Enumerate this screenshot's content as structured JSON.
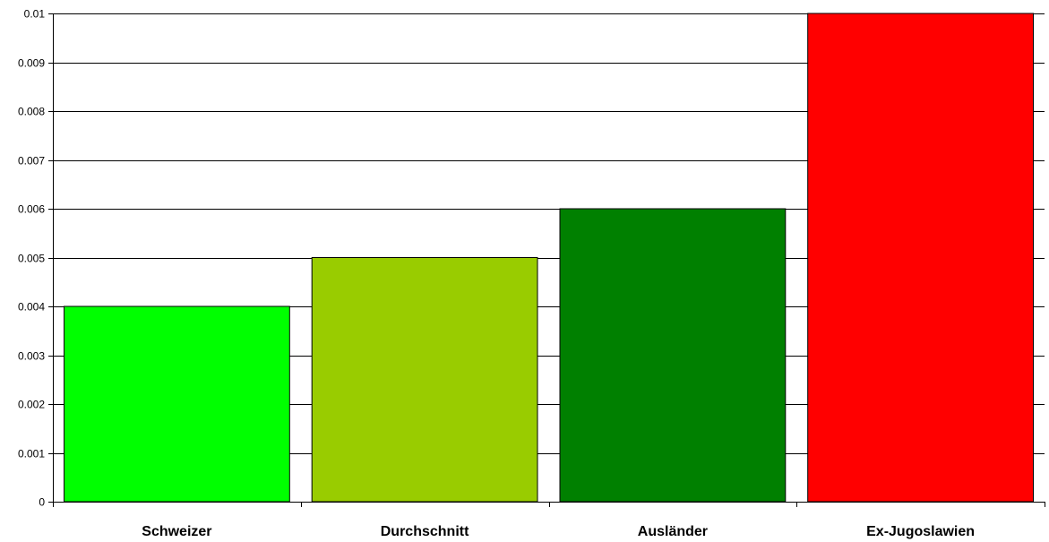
{
  "chart_data": {
    "type": "bar",
    "categories": [
      "Schweizer",
      "Durchschnitt",
      "Ausländer",
      "Ex-Jugoslawien"
    ],
    "values": [
      0.004,
      0.005,
      0.006,
      0.01
    ],
    "colors": [
      "#00ff00",
      "#99cc00",
      "#008000",
      "#ff0000"
    ],
    "title": "",
    "xlabel": "",
    "ylabel": "",
    "ylim": [
      0,
      0.01
    ],
    "yticks": [
      0,
      0.001,
      0.002,
      0.003,
      0.004,
      0.005,
      0.006,
      0.007,
      0.008,
      0.009,
      0.01
    ],
    "ytick_labels": [
      "0",
      "0.001",
      "0.002",
      "0.003",
      "0.004",
      "0.005",
      "0.006",
      "0.007",
      "0.008",
      "0.009",
      "0.01"
    ],
    "grid": true,
    "legend": "none"
  }
}
